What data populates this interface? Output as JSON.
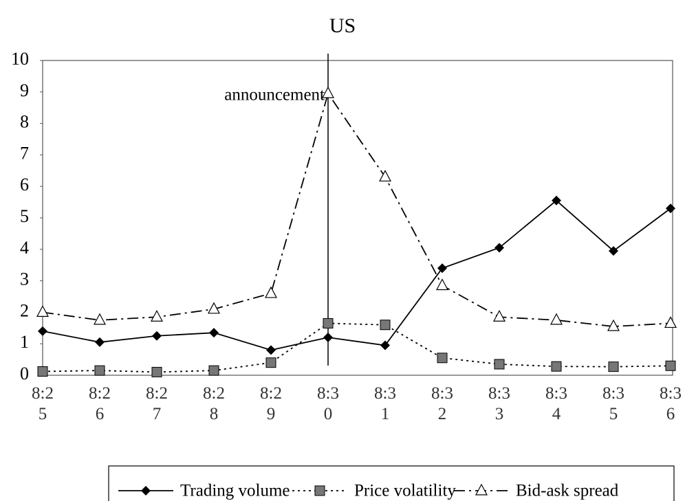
{
  "chart_data": {
    "type": "line",
    "title": "US",
    "categories": [
      "8:25",
      "8:26",
      "8:27",
      "8:28",
      "8:29",
      "8:30",
      "8:31",
      "8:32",
      "8:33",
      "8:34",
      "8:35",
      "8:36"
    ],
    "series": [
      {
        "name": "Trading volume",
        "color": "#000000",
        "style": "solid",
        "marker": "diamond",
        "values": [
          1.4,
          1.05,
          1.25,
          1.35,
          0.8,
          1.2,
          0.95,
          3.4,
          4.05,
          5.55,
          3.95,
          5.3
        ]
      },
      {
        "name": "Price volatility",
        "color": "#000000",
        "style": "dotted",
        "marker": "square",
        "values": [
          0.12,
          0.15,
          0.1,
          0.15,
          0.4,
          1.65,
          1.6,
          0.55,
          0.35,
          0.28,
          0.27,
          0.3
        ]
      },
      {
        "name": "Bid-ask spread",
        "color": "#000000",
        "style": "dashdot",
        "marker": "triangle",
        "values": [
          2.0,
          1.75,
          1.85,
          2.1,
          2.6,
          8.95,
          6.3,
          2.85,
          1.85,
          1.75,
          1.55,
          1.65
        ]
      }
    ],
    "annotation": {
      "text": "announcement",
      "x": "8:30"
    },
    "ylim": [
      0,
      10
    ],
    "yticks": [
      0,
      1,
      2,
      3,
      4,
      5,
      6,
      7,
      8,
      9,
      10
    ],
    "grid": false,
    "legend": "bottom"
  }
}
